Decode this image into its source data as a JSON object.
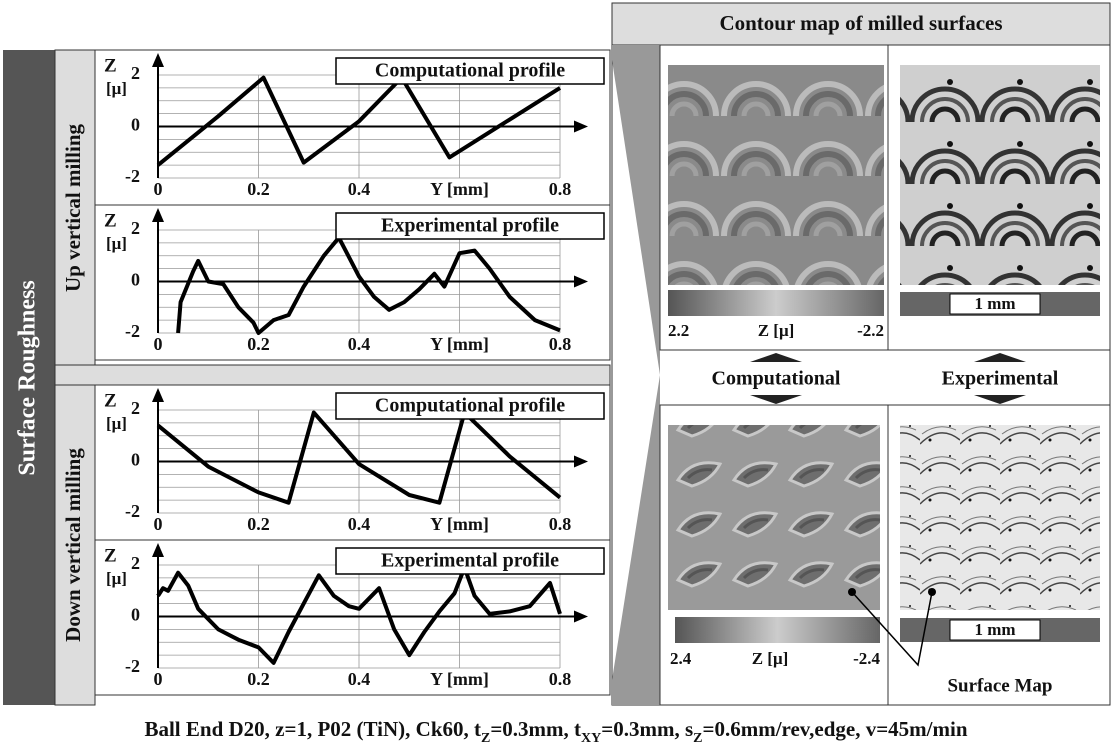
{
  "sidebar": {
    "title": "Surface Roughness",
    "sections": [
      "Up vertical milling",
      "Down vertical milling"
    ]
  },
  "chart_data": [
    {
      "type": "line",
      "title": "Computational profile",
      "ylabel": "Z",
      "yunit": "[μ]",
      "color": "#000000",
      "x": [
        0,
        0.12,
        0.21,
        0.29,
        0.4,
        0.485,
        0.58,
        0.8
      ],
      "values": [
        -1.5,
        0.4,
        1.9,
        -1.4,
        0.2,
        1.9,
        -1.2,
        1.5
      ],
      "xlim": [
        0,
        0.8
      ],
      "ylim": [
        -2,
        2
      ],
      "xticks": [
        0,
        0.2,
        0.4,
        {
          "value": 0.6,
          "label": "Y [mm]"
        },
        0.8
      ],
      "yticks": [
        -2,
        0,
        2
      ],
      "minor_yticks": [
        -1.5,
        -1,
        -0.5,
        0.5,
        1,
        1.5
      ],
      "grid": true
    },
    {
      "type": "line",
      "title": "Experimental profile",
      "ylabel": "Z",
      "yunit": "[μ]",
      "color": "#000000",
      "x": [
        0.04,
        0.045,
        0.07,
        0.08,
        0.1,
        0.13,
        0.16,
        0.19,
        0.2,
        0.23,
        0.26,
        0.29,
        0.33,
        0.36,
        0.4,
        0.43,
        0.46,
        0.49,
        0.52,
        0.55,
        0.57,
        0.6,
        0.63,
        0.66,
        0.7,
        0.75,
        0.8
      ],
      "values": [
        -2,
        -0.8,
        0.4,
        0.8,
        0,
        -0.1,
        -1,
        -1.6,
        -2,
        -1.5,
        -1.3,
        -0.2,
        1,
        1.7,
        0.2,
        -0.6,
        -1.1,
        -0.8,
        -0.3,
        0.3,
        -0.2,
        1.1,
        1.2,
        0.5,
        -0.6,
        -1.5,
        -1.9
      ],
      "xlim": [
        0,
        0.8
      ],
      "ylim": [
        -2,
        2
      ],
      "xticks": [
        0,
        0.2,
        0.4,
        {
          "value": 0.6,
          "label": "Y [mm]"
        },
        0.8
      ],
      "yticks": [
        -2,
        0,
        2
      ],
      "minor_yticks": [
        -1.5,
        -1,
        -0.5,
        0.5,
        1,
        1.5
      ],
      "grid": true
    },
    {
      "type": "line",
      "title": "Computational profile",
      "ylabel": "Z",
      "yunit": "[μ]",
      "color": "#000000",
      "x": [
        0,
        0.1,
        0.2,
        0.26,
        0.31,
        0.4,
        0.5,
        0.56,
        0.61,
        0.7,
        0.8
      ],
      "values": [
        1.4,
        -0.2,
        -1.2,
        -1.6,
        1.9,
        -0.1,
        -1.3,
        -1.6,
        1.9,
        0.2,
        -1.4
      ],
      "xlim": [
        0,
        0.8
      ],
      "ylim": [
        -2,
        2
      ],
      "xticks": [
        0,
        0.2,
        0.4,
        {
          "value": 0.6,
          "label": "Y [mm]"
        },
        0.8
      ],
      "yticks": [
        -2,
        0,
        2
      ],
      "minor_yticks": [
        -1.5,
        -1,
        -0.5,
        0.5,
        1,
        1.5
      ],
      "grid": true
    },
    {
      "type": "line",
      "title": "Experimental profile",
      "ylabel": "Z",
      "yunit": "[μ]",
      "color": "#000000",
      "x": [
        0,
        0.01,
        0.02,
        0.04,
        0.06,
        0.08,
        0.12,
        0.16,
        0.2,
        0.23,
        0.26,
        0.29,
        0.32,
        0.35,
        0.38,
        0.4,
        0.44,
        0.47,
        0.5,
        0.53,
        0.56,
        0.59,
        0.61,
        0.63,
        0.66,
        0.7,
        0.74,
        0.78,
        0.8
      ],
      "values": [
        0.8,
        1.1,
        1,
        1.7,
        1.2,
        0.3,
        -0.5,
        -0.9,
        -1.2,
        -1.8,
        -0.6,
        0.5,
        1.6,
        0.8,
        0.4,
        0.3,
        1.1,
        -0.5,
        -1.5,
        -0.6,
        0.2,
        0.9,
        1.9,
        0.8,
        0.1,
        0.2,
        0.4,
        1.3,
        0.1
      ],
      "xlim": [
        0,
        0.8
      ],
      "ylim": [
        -2,
        2
      ],
      "xticks": [
        0,
        0.2,
        0.4,
        {
          "value": 0.6,
          "label": "Y [mm]"
        },
        0.8
      ],
      "yticks": [
        -2,
        0,
        2
      ],
      "minor_yticks": [
        -1.5,
        -1,
        -0.5,
        0.5,
        1,
        1.5
      ],
      "grid": true
    }
  ],
  "contour": {
    "title": "Contour map of milled surfaces",
    "computational": "Computational",
    "experimental": "Experimental",
    "top_scale": {
      "max": 2.2,
      "unit": "Z [μ]",
      "min": -2.2
    },
    "bottom_scale": {
      "max": 2.4,
      "unit": "Z [μ]",
      "min": -2.4
    },
    "top_bar": "1 mm",
    "bottom_bar": "1 mm",
    "surface_map": "Surface Map"
  },
  "caption": [
    "Ball End D20, z=1, P02 (TiN), Ck60, t",
    "Z",
    "=0.3mm, t",
    "XY",
    "=0.3mm, s",
    "Z",
    "=0.6mm/rev,edge, v=45m/min"
  ]
}
